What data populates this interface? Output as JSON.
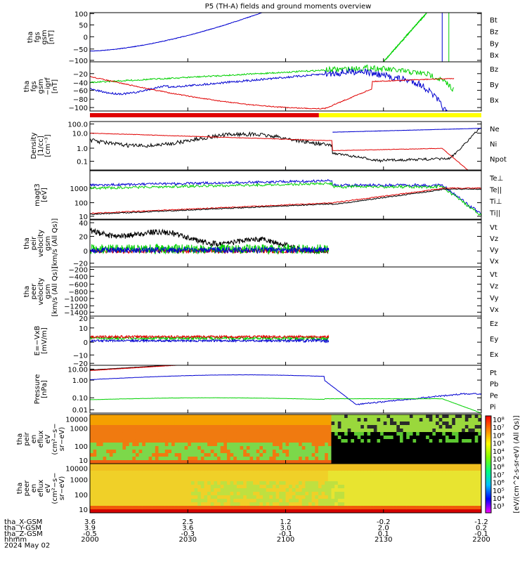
{
  "chart_data": {
    "type": "line",
    "title": "P5 (TH-A) fields and ground moments overview",
    "colors": {
      "black": "#000000",
      "red": "#e00000",
      "green": "#00d000",
      "blue": "#0000d0",
      "yellow": "#ffff00"
    },
    "x_ticks": [
      "2000",
      "2030",
      "2100",
      "2130",
      "2200"
    ],
    "footer": {
      "row_labels": [
        "tha_X-GSM",
        "tha_Y-GSM",
        "tha_Z-GSM",
        "hhmm",
        "2024 May 02"
      ],
      "x_gsm": [
        "3.6",
        "2.5",
        "1.2",
        "-0.2",
        "-1.2"
      ],
      "y_gsm": [
        "3.9",
        "3.6",
        "3.0",
        "2.0",
        "0.2"
      ],
      "z_gsm": [
        "-0.5",
        "-0.3",
        "-0.1",
        "0.1",
        "-0.1"
      ]
    },
    "mode_bar": {
      "slow_survey_fraction": 0.585,
      "fast_survey_fraction": 0.415
    },
    "panels": [
      {
        "id": "fgs-gsm",
        "ylabel": [
          "tha",
          "fgs",
          "gsm",
          "[nT]"
        ],
        "ticks": [
          "100",
          "50",
          "0",
          "−50",
          "−100"
        ],
        "ylim": [
          -100,
          100
        ],
        "legend": [
          {
            "label": "Bt",
            "color": "black"
          },
          {
            "label": "Bz",
            "color": "red"
          },
          {
            "label": "By",
            "color": "green"
          },
          {
            "label": "Bx",
            "color": "blue"
          }
        ]
      },
      {
        "id": "fgs-gsm-dipole",
        "ylabel": [
          "tha",
          "fgs",
          "gsm",
          "−igrf",
          "[nT]"
        ],
        "ticks": [
          "−20",
          "−40",
          "−60",
          "−80",
          "−100"
        ],
        "ylim": [
          -110,
          0
        ],
        "legend": [
          {
            "label": "Bz",
            "color": "red"
          },
          {
            "label": "By",
            "color": "green"
          },
          {
            "label": "Bx",
            "color": "blue"
          }
        ]
      },
      {
        "id": "density",
        "ylabel": [
          "Density",
          "[1/cc]",
          "[cm⁻³]"
        ],
        "ticks": [
          "100.0",
          "10.0",
          "1.0",
          "0.1"
        ],
        "scale": "log",
        "legend": [
          {
            "label": "Ne",
            "color": "red"
          },
          {
            "label": "Ni",
            "color": "black"
          },
          {
            "label": "Npot",
            "color": "blue"
          }
        ]
      },
      {
        "id": "temperature",
        "ylabel": [
          "magt3",
          "[eV]"
        ],
        "ticks": [
          "1000",
          "100",
          "10"
        ],
        "scale": "log",
        "legend": [
          {
            "label": "Te⊥",
            "color": "red"
          },
          {
            "label": "Te||",
            "color": "black"
          },
          {
            "label": "Ti⊥",
            "color": "blue"
          },
          {
            "label": "Ti||",
            "color": "green"
          }
        ]
      },
      {
        "id": "peir-velocity",
        "ylabel": [
          "tha",
          "peir",
          "velocity",
          "gsm",
          "[km/s (All Qs)]"
        ],
        "ticks": [
          "40",
          "20",
          "0",
          "−20"
        ],
        "ylim": [
          -20,
          45
        ],
        "legend": [
          {
            "label": "Vt",
            "color": "black"
          },
          {
            "label": "Vz",
            "color": "red"
          },
          {
            "label": "Vy",
            "color": "green"
          },
          {
            "label": "Vx",
            "color": "blue"
          }
        ]
      },
      {
        "id": "peer-velocity",
        "ylabel": [
          "tha",
          "peer",
          "velocity",
          "gsm",
          "[km/s (All Qs)]"
        ],
        "ticks": [
          "−200",
          "−400",
          "−600",
          "−800",
          "−1000",
          "−1200",
          "−1400"
        ],
        "ylim": [
          -1450,
          -130
        ],
        "legend": [
          {
            "label": "Vt",
            "color": "black"
          },
          {
            "label": "Vz",
            "color": "red"
          },
          {
            "label": "Vy",
            "color": "green"
          },
          {
            "label": "Vx",
            "color": "blue"
          }
        ]
      },
      {
        "id": "efield",
        "ylabel": [
          "E=−VxB",
          "[mV/m]"
        ],
        "ticks": [
          "20",
          "10",
          "0",
          "−10",
          "−20"
        ],
        "ylim": [
          -22,
          24
        ],
        "legend": [
          {
            "label": "Ez",
            "color": "red"
          },
          {
            "label": "Ey",
            "color": "green"
          },
          {
            "label": "Ex",
            "color": "blue"
          }
        ]
      },
      {
        "id": "pressure",
        "ylabel": [
          "Pressure",
          "[nPa]"
        ],
        "ticks": [
          "10.00",
          "1.00",
          "0.10",
          "0.01"
        ],
        "scale": "log",
        "legend": [
          {
            "label": "Pt",
            "color": "black"
          },
          {
            "label": "Pb",
            "color": "red"
          },
          {
            "label": "Pe",
            "color": "green"
          },
          {
            "label": "Pi",
            "color": "blue"
          }
        ]
      },
      {
        "id": "peir-spectrogram",
        "ylabel": [
          "tha",
          "peir",
          "en",
          "eflux",
          "eV",
          "(cm²−s−",
          "sr−eV)"
        ],
        "ticks": [
          "10000",
          "1000",
          "100",
          "10"
        ],
        "scale": "log"
      },
      {
        "id": "peer-spectrogram",
        "ylabel": [
          "tha",
          "peer",
          "en",
          "eflux",
          "eV",
          "(cm²−s−",
          "sr−eV)"
        ],
        "ticks": [
          "10000",
          "1000",
          "100",
          "10"
        ],
        "scale": "log"
      }
    ],
    "colorbar": {
      "label": "[eV/(cm^2-s-sr-eV) (All Qs)]",
      "ticks": [
        "10⁸",
        "10⁷",
        "10⁶",
        "10⁵",
        "10⁴",
        "10³",
        "10⁸",
        "10⁷",
        "10⁶",
        "10⁵",
        "10⁴",
        "10³"
      ]
    }
  }
}
